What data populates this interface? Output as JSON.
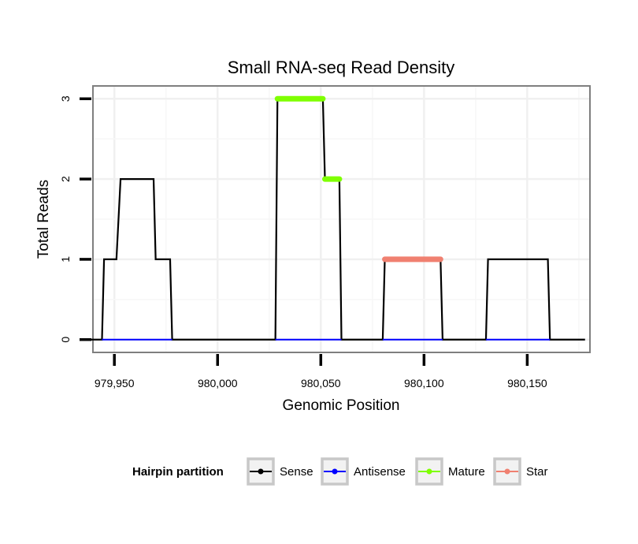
{
  "chart_data": {
    "type": "line",
    "title": "Small RNA-seq Read Density",
    "xlabel": "Genomic Position",
    "ylabel": "Total Reads",
    "xlim": [
      979940,
      980180
    ],
    "ylim": [
      -0.15,
      3.15
    ],
    "x_ticks": [
      979950,
      980000,
      980050,
      980100,
      980150
    ],
    "x_tick_labels": [
      "979,950",
      "980,000",
      "980,050",
      "980,100",
      "980,150"
    ],
    "y_ticks": [
      0,
      1,
      2,
      3
    ],
    "y_tick_labels": [
      "0",
      "1",
      "2",
      "3"
    ],
    "grid": true,
    "legend": {
      "title": "Hairpin partition",
      "placement": "bottom",
      "entries": [
        {
          "name": "Sense",
          "color": "#000000"
        },
        {
          "name": "Antisense",
          "color": "#0000ff"
        },
        {
          "name": "Mature",
          "color": "#7fff00"
        },
        {
          "name": "Star",
          "color": "#f08070"
        }
      ]
    },
    "series": [
      {
        "name": "Sense",
        "color": "#000000",
        "points": [
          [
            979936,
            0
          ],
          [
            979944,
            0
          ],
          [
            979945,
            1
          ],
          [
            979951,
            1
          ],
          [
            979953,
            2
          ],
          [
            979969,
            2
          ],
          [
            979970,
            1
          ],
          [
            979977,
            1
          ],
          [
            979978,
            0
          ],
          [
            980028,
            0
          ],
          [
            980029,
            3
          ],
          [
            980051,
            3
          ],
          [
            980052,
            2
          ],
          [
            980059,
            2
          ],
          [
            980060,
            0
          ],
          [
            980080,
            0
          ],
          [
            980081,
            1
          ],
          [
            980108,
            1
          ],
          [
            980109,
            0
          ],
          [
            980130,
            0
          ],
          [
            980131,
            1
          ],
          [
            980160,
            1
          ],
          [
            980161,
            0
          ],
          [
            980178,
            0
          ]
        ]
      },
      {
        "name": "Antisense",
        "color": "#0000ff",
        "segments": [
          [
            979944,
            979978
          ],
          [
            980028,
            980060
          ],
          [
            980080,
            980109
          ],
          [
            980130,
            980161
          ]
        ],
        "value": 0
      },
      {
        "name": "Mature",
        "color": "#7fff00",
        "segments": [
          [
            980029,
            980051,
            3
          ],
          [
            980052,
            980059,
            2
          ]
        ]
      },
      {
        "name": "Star",
        "color": "#f08070",
        "segments": [
          [
            980081,
            980108,
            1
          ]
        ]
      }
    ]
  }
}
